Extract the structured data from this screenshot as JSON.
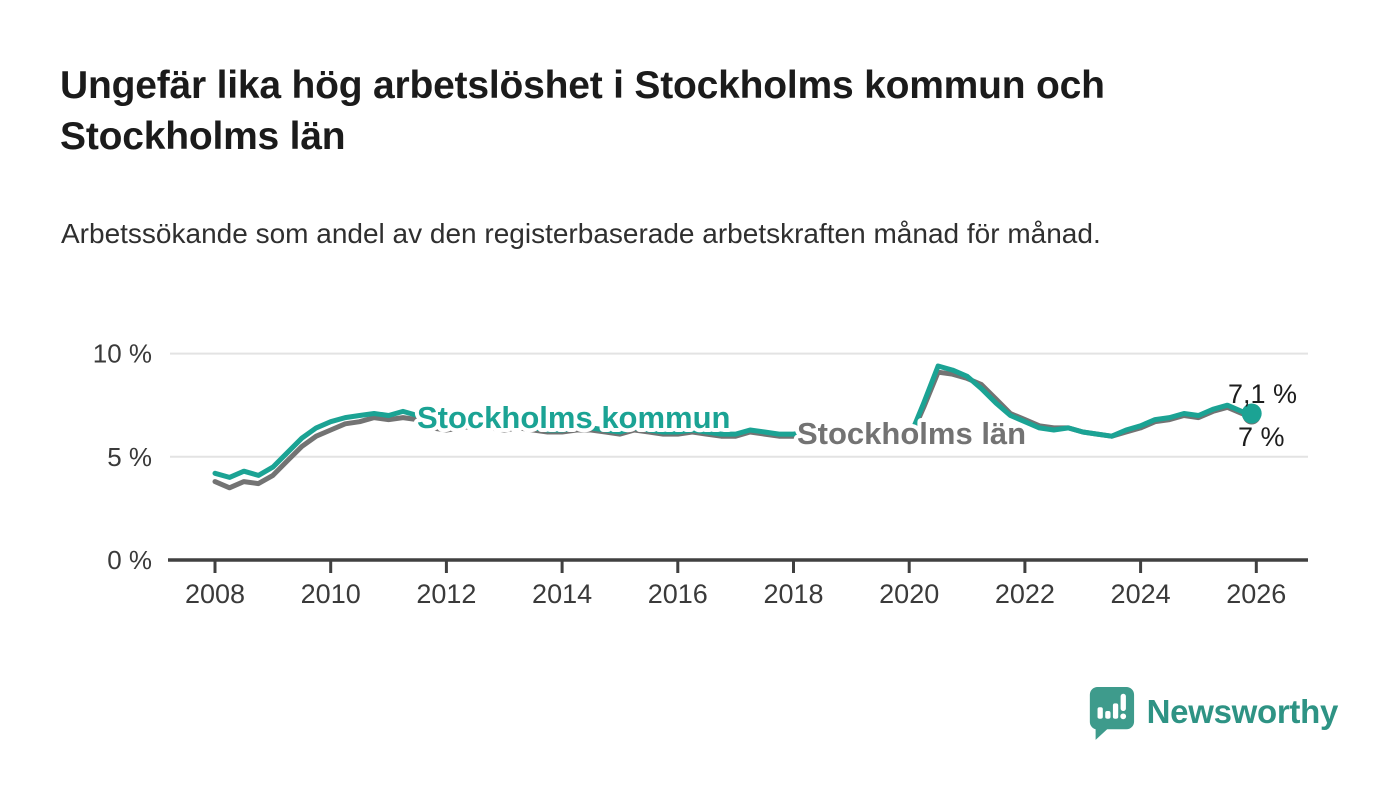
{
  "header": {
    "title": "Ungefär lika hög arbetslöshet i Stockholms kommun och Stockholms län",
    "subtitle": "Arbetssökande som andel av den registerbaserade arbetskraften månad för månad."
  },
  "chart_data": {
    "type": "line",
    "title": "Ungefär lika hög arbetslöshet i Stockholms kommun och Stockholms län",
    "subtitle": "Arbetssökande som andel av den registerbaserade arbetskraften månad för månad.",
    "unit": "%",
    "grid": "horizontal",
    "legend_position": "inline-on-lines",
    "xlim": [
      2007.2,
      2026.9
    ],
    "ylim": [
      0,
      10.8
    ],
    "xticks": [
      {
        "value": 2008,
        "label": "2008"
      },
      {
        "value": 2010,
        "label": "2010"
      },
      {
        "value": 2012,
        "label": "2012"
      },
      {
        "value": 2014,
        "label": "2014"
      },
      {
        "value": 2016,
        "label": "2016"
      },
      {
        "value": 2018,
        "label": "2018"
      },
      {
        "value": 2020,
        "label": "2020"
      },
      {
        "value": 2022,
        "label": "2022"
      },
      {
        "value": 2024,
        "label": "2024"
      },
      {
        "value": 2026,
        "label": "2026"
      }
    ],
    "yticks": [
      {
        "value": 0,
        "label": "0 %"
      },
      {
        "value": 5,
        "label": "5 %"
      },
      {
        "value": 10,
        "label": "10 %"
      }
    ],
    "x": [
      2008,
      2008.25,
      2008.5,
      2008.75,
      2009,
      2009.25,
      2009.5,
      2009.75,
      2010,
      2010.25,
      2010.5,
      2010.75,
      2011,
      2011.25,
      2011.5,
      2011.75,
      2012,
      2012.25,
      2012.5,
      2012.75,
      2013,
      2013.25,
      2013.5,
      2013.75,
      2014,
      2014.25,
      2014.5,
      2014.75,
      2015,
      2015.25,
      2015.5,
      2015.75,
      2016,
      2016.25,
      2016.5,
      2016.75,
      2017,
      2017.25,
      2017.5,
      2017.75,
      2018,
      2018.25,
      2018.5,
      2018.75,
      2019,
      2019.25,
      2019.5,
      2019.75,
      2020,
      2020.25,
      2020.5,
      2020.75,
      2021,
      2021.25,
      2021.5,
      2021.75,
      2022,
      2022.25,
      2022.5,
      2022.75,
      2023,
      2023.25,
      2023.5,
      2023.75,
      2024,
      2024.25,
      2024.5,
      2024.75,
      2025,
      2025.25,
      2025.5,
      2025.75,
      2025.92
    ],
    "series": [
      {
        "name": "Stockholms län",
        "color": "#737373",
        "end_label": "7 %",
        "end_value": 7.0,
        "values": [
          3.8,
          3.5,
          3.8,
          3.7,
          4.1,
          4.8,
          5.5,
          6.0,
          6.3,
          6.6,
          6.7,
          6.9,
          6.8,
          6.9,
          6.8,
          6.4,
          6.3,
          6.4,
          6.5,
          6.4,
          6.3,
          6.4,
          6.3,
          6.2,
          6.2,
          6.3,
          6.3,
          6.2,
          6.1,
          6.3,
          6.2,
          6.1,
          6.1,
          6.2,
          6.1,
          6.0,
          6.0,
          6.2,
          6.1,
          6.0,
          6.0,
          6.1,
          6.0,
          5.9,
          5.8,
          5.8,
          5.7,
          5.8,
          5.8,
          7.4,
          9.1,
          9.0,
          8.8,
          8.5,
          7.8,
          7.1,
          6.8,
          6.5,
          6.4,
          6.4,
          6.2,
          6.1,
          6.0,
          6.2,
          6.4,
          6.7,
          6.8,
          7.0,
          6.9,
          7.2,
          7.4,
          7.1,
          7.0
        ]
      },
      {
        "name": "Stockholms kommun",
        "color": "#1ba394",
        "end_label": "7,1 %",
        "end_value": 7.1,
        "values": [
          4.2,
          4.0,
          4.3,
          4.1,
          4.5,
          5.2,
          5.9,
          6.4,
          6.7,
          6.9,
          7.0,
          7.1,
          7.0,
          7.2,
          7.0,
          6.7,
          6.5,
          6.6,
          6.6,
          6.5,
          6.4,
          6.5,
          6.4,
          6.3,
          6.3,
          6.4,
          6.4,
          6.3,
          6.2,
          6.4,
          6.3,
          6.2,
          6.2,
          6.3,
          6.2,
          6.1,
          6.1,
          6.3,
          6.2,
          6.1,
          6.1,
          6.2,
          6.1,
          6.0,
          5.9,
          5.8,
          5.8,
          5.9,
          5.9,
          7.6,
          9.4,
          9.2,
          8.9,
          8.3,
          7.6,
          7.0,
          6.7,
          6.4,
          6.3,
          6.4,
          6.2,
          6.1,
          6.0,
          6.3,
          6.5,
          6.8,
          6.9,
          7.1,
          7.0,
          7.3,
          7.5,
          7.2,
          7.1
        ]
      }
    ]
  },
  "colors": {
    "accent_teal": "#1ba394",
    "line_gray": "#737373",
    "gridline": "#e3e3e3",
    "axis": "#404040",
    "tick_text": "#3a3a3a",
    "value_text": "#1d1d1d",
    "logo_bubble": "#3e9b8c",
    "logo_text": "#2e9384"
  },
  "logo": {
    "name": "Newsworthy",
    "icon": "newsworthy-bubble-bar-chart-icon"
  }
}
